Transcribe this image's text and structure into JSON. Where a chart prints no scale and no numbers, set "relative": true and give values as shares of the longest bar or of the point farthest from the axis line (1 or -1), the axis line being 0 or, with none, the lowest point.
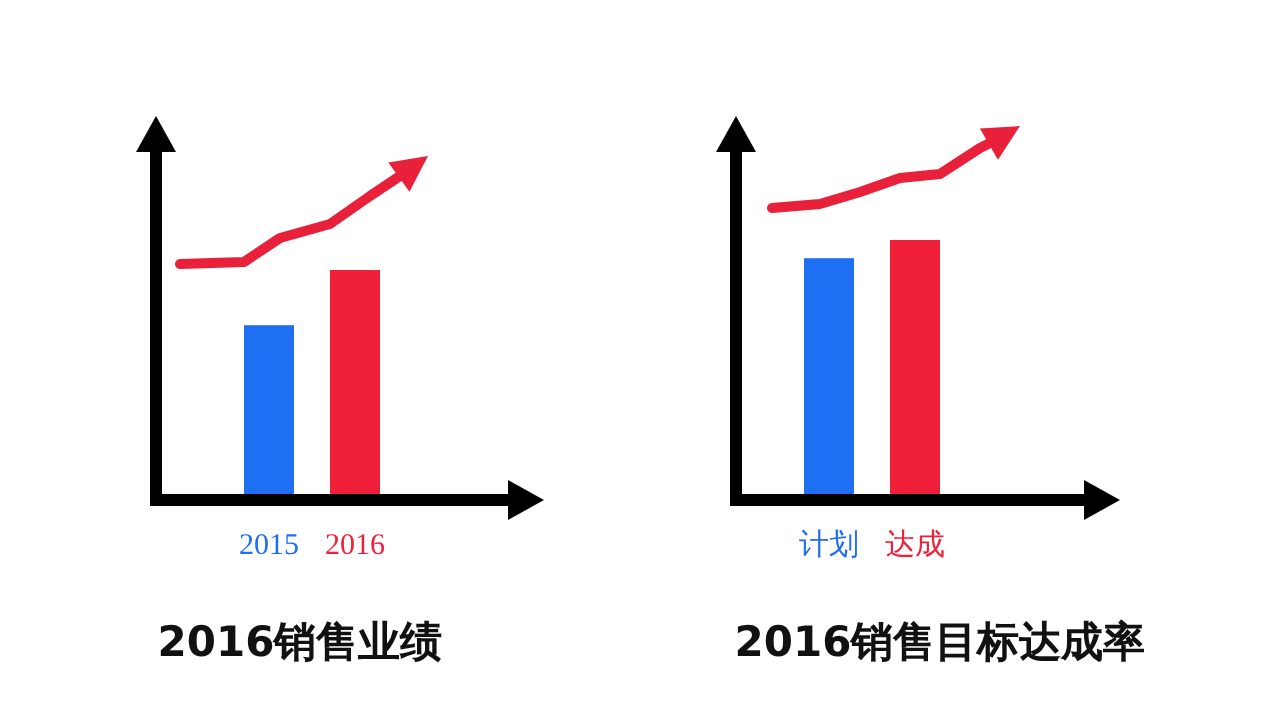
{
  "chart_data": [
    {
      "type": "bar",
      "title": "2016销售业绩",
      "relative": true,
      "categories": [
        "2015",
        "2016"
      ],
      "values": [
        0.76,
        1
      ],
      "colors": [
        "#1f6ff2",
        "#f0203a"
      ]
    },
    {
      "type": "bar",
      "title": "2016销售目标达成率",
      "relative": true,
      "categories": [
        "计划",
        "达成"
      ],
      "values": [
        0.93,
        1
      ],
      "colors": [
        "#1f6ff2",
        "#f0203a"
      ]
    }
  ]
}
